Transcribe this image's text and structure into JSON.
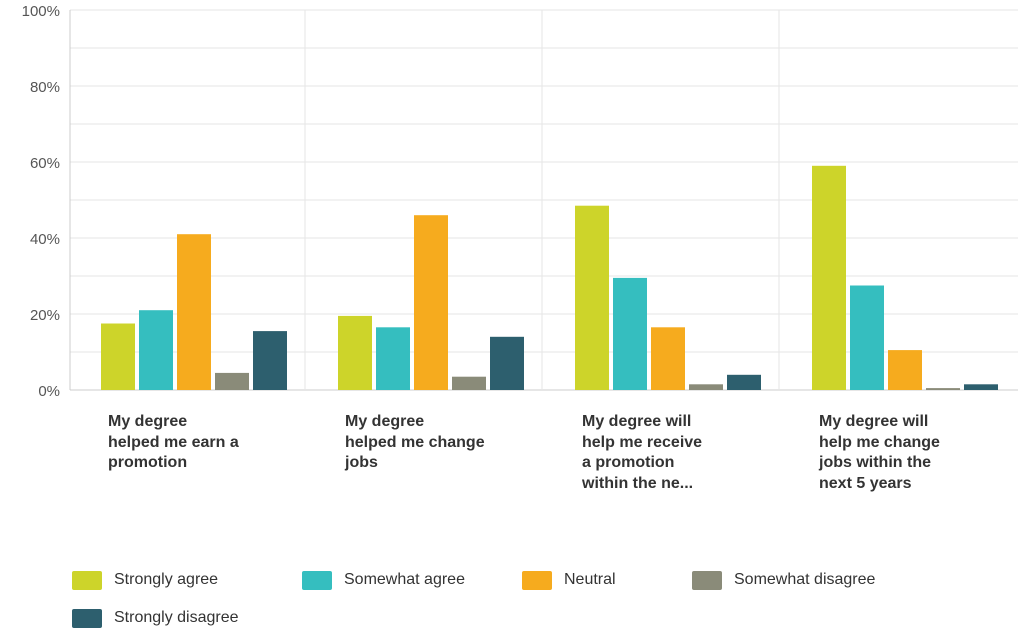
{
  "chart_data": {
    "type": "bar",
    "title": "",
    "xlabel": "",
    "ylabel": "",
    "ylim": [
      0,
      100
    ],
    "y_ticks": [
      "0%",
      "20%",
      "40%",
      "60%",
      "80%",
      "100%"
    ],
    "grid": true,
    "legend_position": "bottom",
    "categories": [
      [
        "My degree",
        "helped me earn a",
        "promotion"
      ],
      [
        "My degree",
        "helped me change",
        "jobs"
      ],
      [
        "My degree will",
        "help me receive",
        "a promotion",
        "within the ne..."
      ],
      [
        "My degree will",
        "help me change",
        "jobs within the",
        "next 5 years"
      ]
    ],
    "series": [
      {
        "name": "Strongly agree",
        "color": "#cdd42a",
        "values": [
          17.5,
          19.5,
          48.5,
          59
        ]
      },
      {
        "name": "Somewhat agree",
        "color": "#35bebf",
        "values": [
          21,
          16.5,
          29.5,
          27.5
        ]
      },
      {
        "name": "Neutral",
        "color": "#f6ab1e",
        "values": [
          41,
          46,
          16.5,
          10.5
        ]
      },
      {
        "name": "Somewhat disagree",
        "color": "#8a8b79",
        "values": [
          4.5,
          3.5,
          1.5,
          0.5
        ]
      },
      {
        "name": "Strongly disagree",
        "color": "#2d5f6e",
        "values": [
          15.5,
          14,
          4,
          1.5
        ]
      }
    ]
  },
  "colors": {
    "grid": "#e6e6e6",
    "axis": "#cccccc",
    "tick_text": "#555555",
    "label_text": "#333333"
  }
}
